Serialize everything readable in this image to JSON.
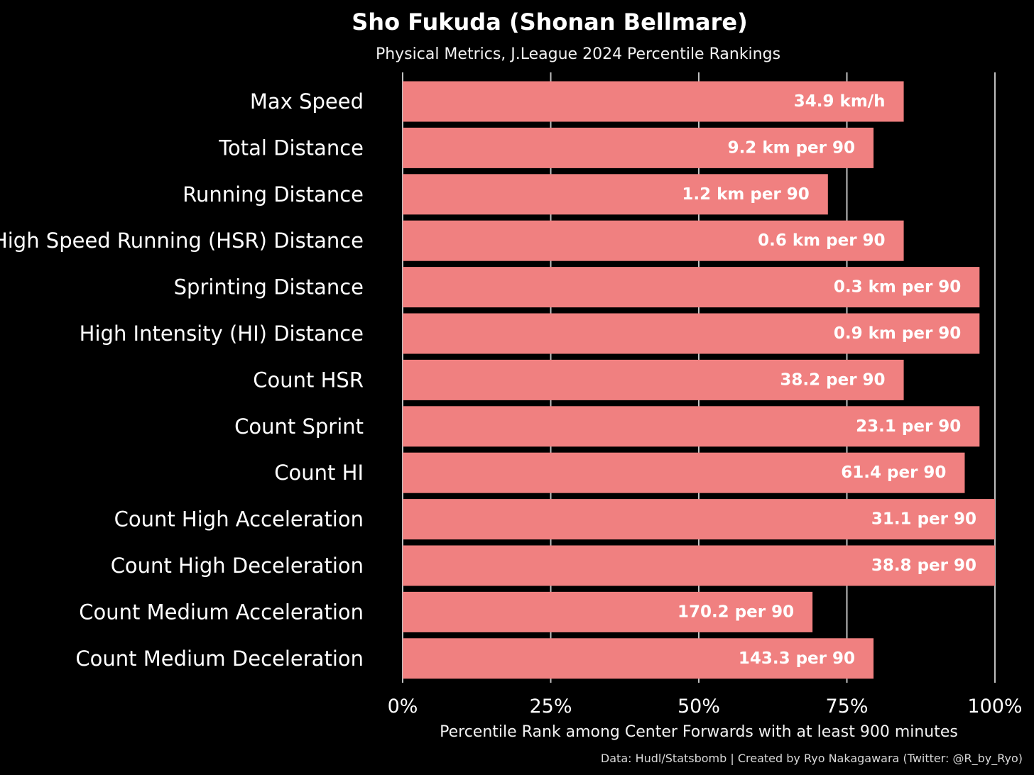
{
  "chart_data": {
    "type": "bar",
    "orientation": "horizontal",
    "title": "Sho Fukuda (Shonan Bellmare)",
    "subtitle": "Physical Metrics, J.League 2024 Percentile Rankings",
    "xlabel": "Percentile Rank among Center Forwards with at least 900 minutes",
    "caption": "Data: Hudl/Statsbomb | Created by Ryo Nakagawara (Twitter: @R_by_Ryo)",
    "xlim": [
      0,
      100
    ],
    "x_ticks": [
      0,
      25,
      50,
      75,
      100
    ],
    "x_tick_labels": [
      "0%",
      "25%",
      "50%",
      "75%",
      "100%"
    ],
    "grid": "vertical major",
    "legend": "none",
    "categories": [
      "Max Speed",
      "Total Distance",
      "Running Distance",
      "High Speed Running (HSR) Distance",
      "Sprinting Distance",
      "High Intensity (HI) Distance",
      "Count HSR",
      "Count Sprint",
      "Count HI",
      "Count High Acceleration",
      "Count High Deceleration",
      "Count Medium Acceleration",
      "Count Medium Deceleration"
    ],
    "values": [
      84.6,
      79.5,
      71.8,
      84.6,
      97.4,
      97.4,
      84.6,
      97.4,
      94.9,
      100,
      100,
      69.2,
      79.5
    ],
    "data_labels": [
      "34.9 km/h",
      "9.2 km per 90",
      "1.2 km per 90",
      "0.6 km per 90",
      "0.3 km per 90",
      "0.9 km per 90",
      "38.2 per 90",
      "23.1 per 90",
      "61.4 per 90",
      "31.1 per 90",
      "38.8 per 90",
      "170.2 per 90",
      "143.3 per 90"
    ],
    "colors": {
      "background": "#000000",
      "bar": "#F08080",
      "grid": "#bfbfbf",
      "text": "#ffffff"
    }
  }
}
